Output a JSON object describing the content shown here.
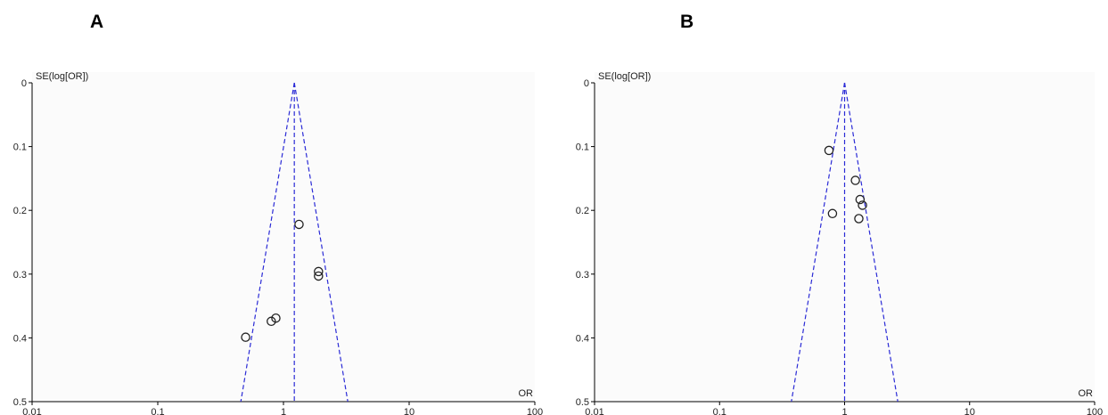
{
  "chart_data": [
    {
      "panel": "A",
      "type": "scatter",
      "ylabel": "SE(log[OR])",
      "xlabel": "OR",
      "xscale": "log",
      "xlim": [
        0.01,
        100
      ],
      "ylim": [
        0,
        0.5
      ],
      "yaxis_inverted": true,
      "xticks": [
        "0.01",
        "0.1",
        "1",
        "10",
        "100"
      ],
      "yticks": [
        "0",
        "0.1",
        "0.2",
        "0.3",
        "0.4",
        "0.5"
      ],
      "pooled_or": 1.22,
      "funnel_color": "#2b2bd6",
      "points": [
        {
          "or": 1.33,
          "se": 0.222
        },
        {
          "or": 1.9,
          "se": 0.296
        },
        {
          "or": 1.9,
          "se": 0.303
        },
        {
          "or": 0.87,
          "se": 0.369
        },
        {
          "or": 0.8,
          "se": 0.374
        },
        {
          "or": 0.5,
          "se": 0.399
        }
      ]
    },
    {
      "panel": "B",
      "type": "scatter",
      "ylabel": "SE(log[OR])",
      "xlabel": "OR",
      "xscale": "log",
      "xlim": [
        0.01,
        100
      ],
      "ylim": [
        0,
        0.5
      ],
      "yaxis_inverted": true,
      "xticks": [
        "0.01",
        "0.1",
        "1",
        "10",
        "100"
      ],
      "yticks": [
        "0",
        "0.1",
        "0.2",
        "0.3",
        "0.4",
        "0.5"
      ],
      "pooled_or": 1.0,
      "funnel_color": "#2b2bd6",
      "points": [
        {
          "or": 0.75,
          "se": 0.106
        },
        {
          "or": 1.22,
          "se": 0.153
        },
        {
          "or": 1.33,
          "se": 0.183
        },
        {
          "or": 1.39,
          "se": 0.192
        },
        {
          "or": 0.8,
          "se": 0.205
        },
        {
          "or": 1.3,
          "se": 0.213
        }
      ]
    }
  ],
  "panel_labels": [
    "A",
    "B"
  ]
}
